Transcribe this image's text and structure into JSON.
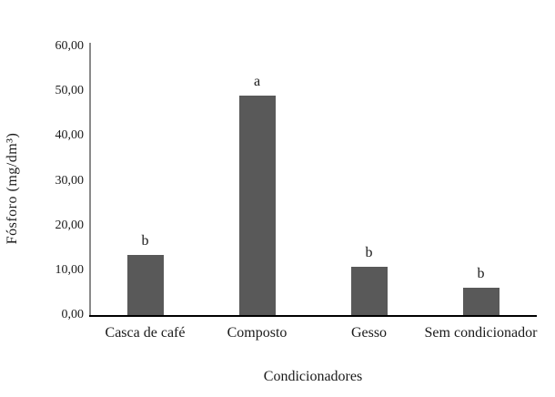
{
  "chart_data": {
    "type": "bar",
    "title": "",
    "categories": [
      "Casca de café",
      "Composto",
      "Gesso",
      "Sem condicionador"
    ],
    "values": [
      13.5,
      49.0,
      10.8,
      6.2
    ],
    "significance_letters": [
      "b",
      "a",
      "b",
      "b"
    ],
    "xlabel": "Condicionadores",
    "ylabel": "Fósforo (mg/dm³)",
    "ylim": [
      0,
      60
    ],
    "y_tick_values": [
      0,
      10,
      20,
      30,
      40,
      50,
      60
    ],
    "y_tick_labels": [
      "0,00",
      "10,00",
      "20,00",
      "30,00",
      "40,00",
      "50,00",
      "60,00"
    ],
    "grid": false,
    "legend": "none",
    "bar_color": "#595959",
    "y_axis_color": "#8a8a8a",
    "x_axis_color": "#000000",
    "background": "#ffffff"
  }
}
